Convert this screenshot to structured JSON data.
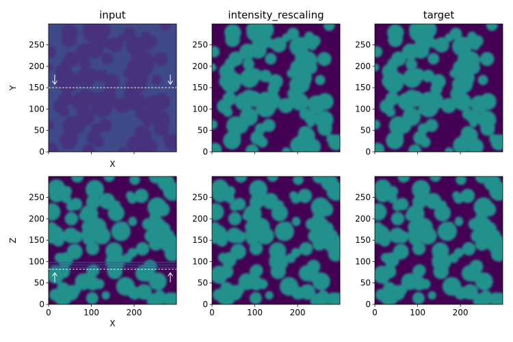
{
  "colors": {
    "background": "#440154",
    "input_xy_background": "#3f4a89",
    "input_xy_blob": "#46327e",
    "blob": "#21918c",
    "marker_line": "#ffffff"
  },
  "chart_data": [
    {
      "type": "heatmap",
      "id": "xy-input",
      "title": "input",
      "xlabel": "X",
      "ylabel": "Y",
      "xlim": [
        0,
        299
      ],
      "ylim": [
        0,
        299
      ],
      "xticks": [
        0,
        100,
        200
      ],
      "yticks": [
        0,
        50,
        100,
        150,
        200,
        250
      ],
      "show_x_ticklabels": false,
      "show_y_ticklabels": true,
      "marker_line": {
        "y": 150,
        "arrows": "down"
      }
    },
    {
      "type": "heatmap",
      "id": "xy-rescaled",
      "title": "intensity_rescaling",
      "xlabel": "",
      "ylabel": "",
      "xlim": [
        0,
        299
      ],
      "ylim": [
        0,
        299
      ],
      "xticks": [
        0,
        100,
        200
      ],
      "yticks": [
        0,
        50,
        100,
        150,
        200,
        250
      ],
      "show_x_ticklabels": false,
      "show_y_ticklabels": true
    },
    {
      "type": "heatmap",
      "id": "xy-target",
      "title": "target",
      "xlabel": "",
      "ylabel": "",
      "xlim": [
        0,
        299
      ],
      "ylim": [
        0,
        299
      ],
      "xticks": [
        0,
        100,
        200
      ],
      "yticks": [
        0,
        50,
        100,
        150,
        200,
        250
      ],
      "show_x_ticklabels": false,
      "show_y_ticklabels": true
    },
    {
      "type": "heatmap",
      "id": "xz-input",
      "title": "",
      "xlabel": "X",
      "ylabel": "Z",
      "xlim": [
        0,
        299
      ],
      "ylim": [
        0,
        299
      ],
      "xticks": [
        0,
        100,
        200
      ],
      "yticks": [
        0,
        50,
        100,
        150,
        200,
        250
      ],
      "show_x_ticklabels": true,
      "show_y_ticklabels": true,
      "marker_line": {
        "y": 82,
        "arrows": "up"
      }
    },
    {
      "type": "heatmap",
      "id": "xz-rescaled",
      "title": "",
      "xlabel": "",
      "ylabel": "",
      "xlim": [
        0,
        299
      ],
      "ylim": [
        0,
        299
      ],
      "xticks": [
        0,
        100,
        200
      ],
      "yticks": [
        0,
        50,
        100,
        150,
        200,
        250
      ],
      "show_x_ticklabels": true,
      "show_y_ticklabels": true
    },
    {
      "type": "heatmap",
      "id": "xz-target",
      "title": "",
      "xlabel": "",
      "ylabel": "",
      "xlim": [
        0,
        299
      ],
      "ylim": [
        0,
        299
      ],
      "xticks": [
        0,
        100,
        200
      ],
      "yticks": [
        0,
        50,
        100,
        150,
        200,
        250
      ],
      "show_x_ticklabels": true,
      "show_y_ticklabels": true
    }
  ]
}
